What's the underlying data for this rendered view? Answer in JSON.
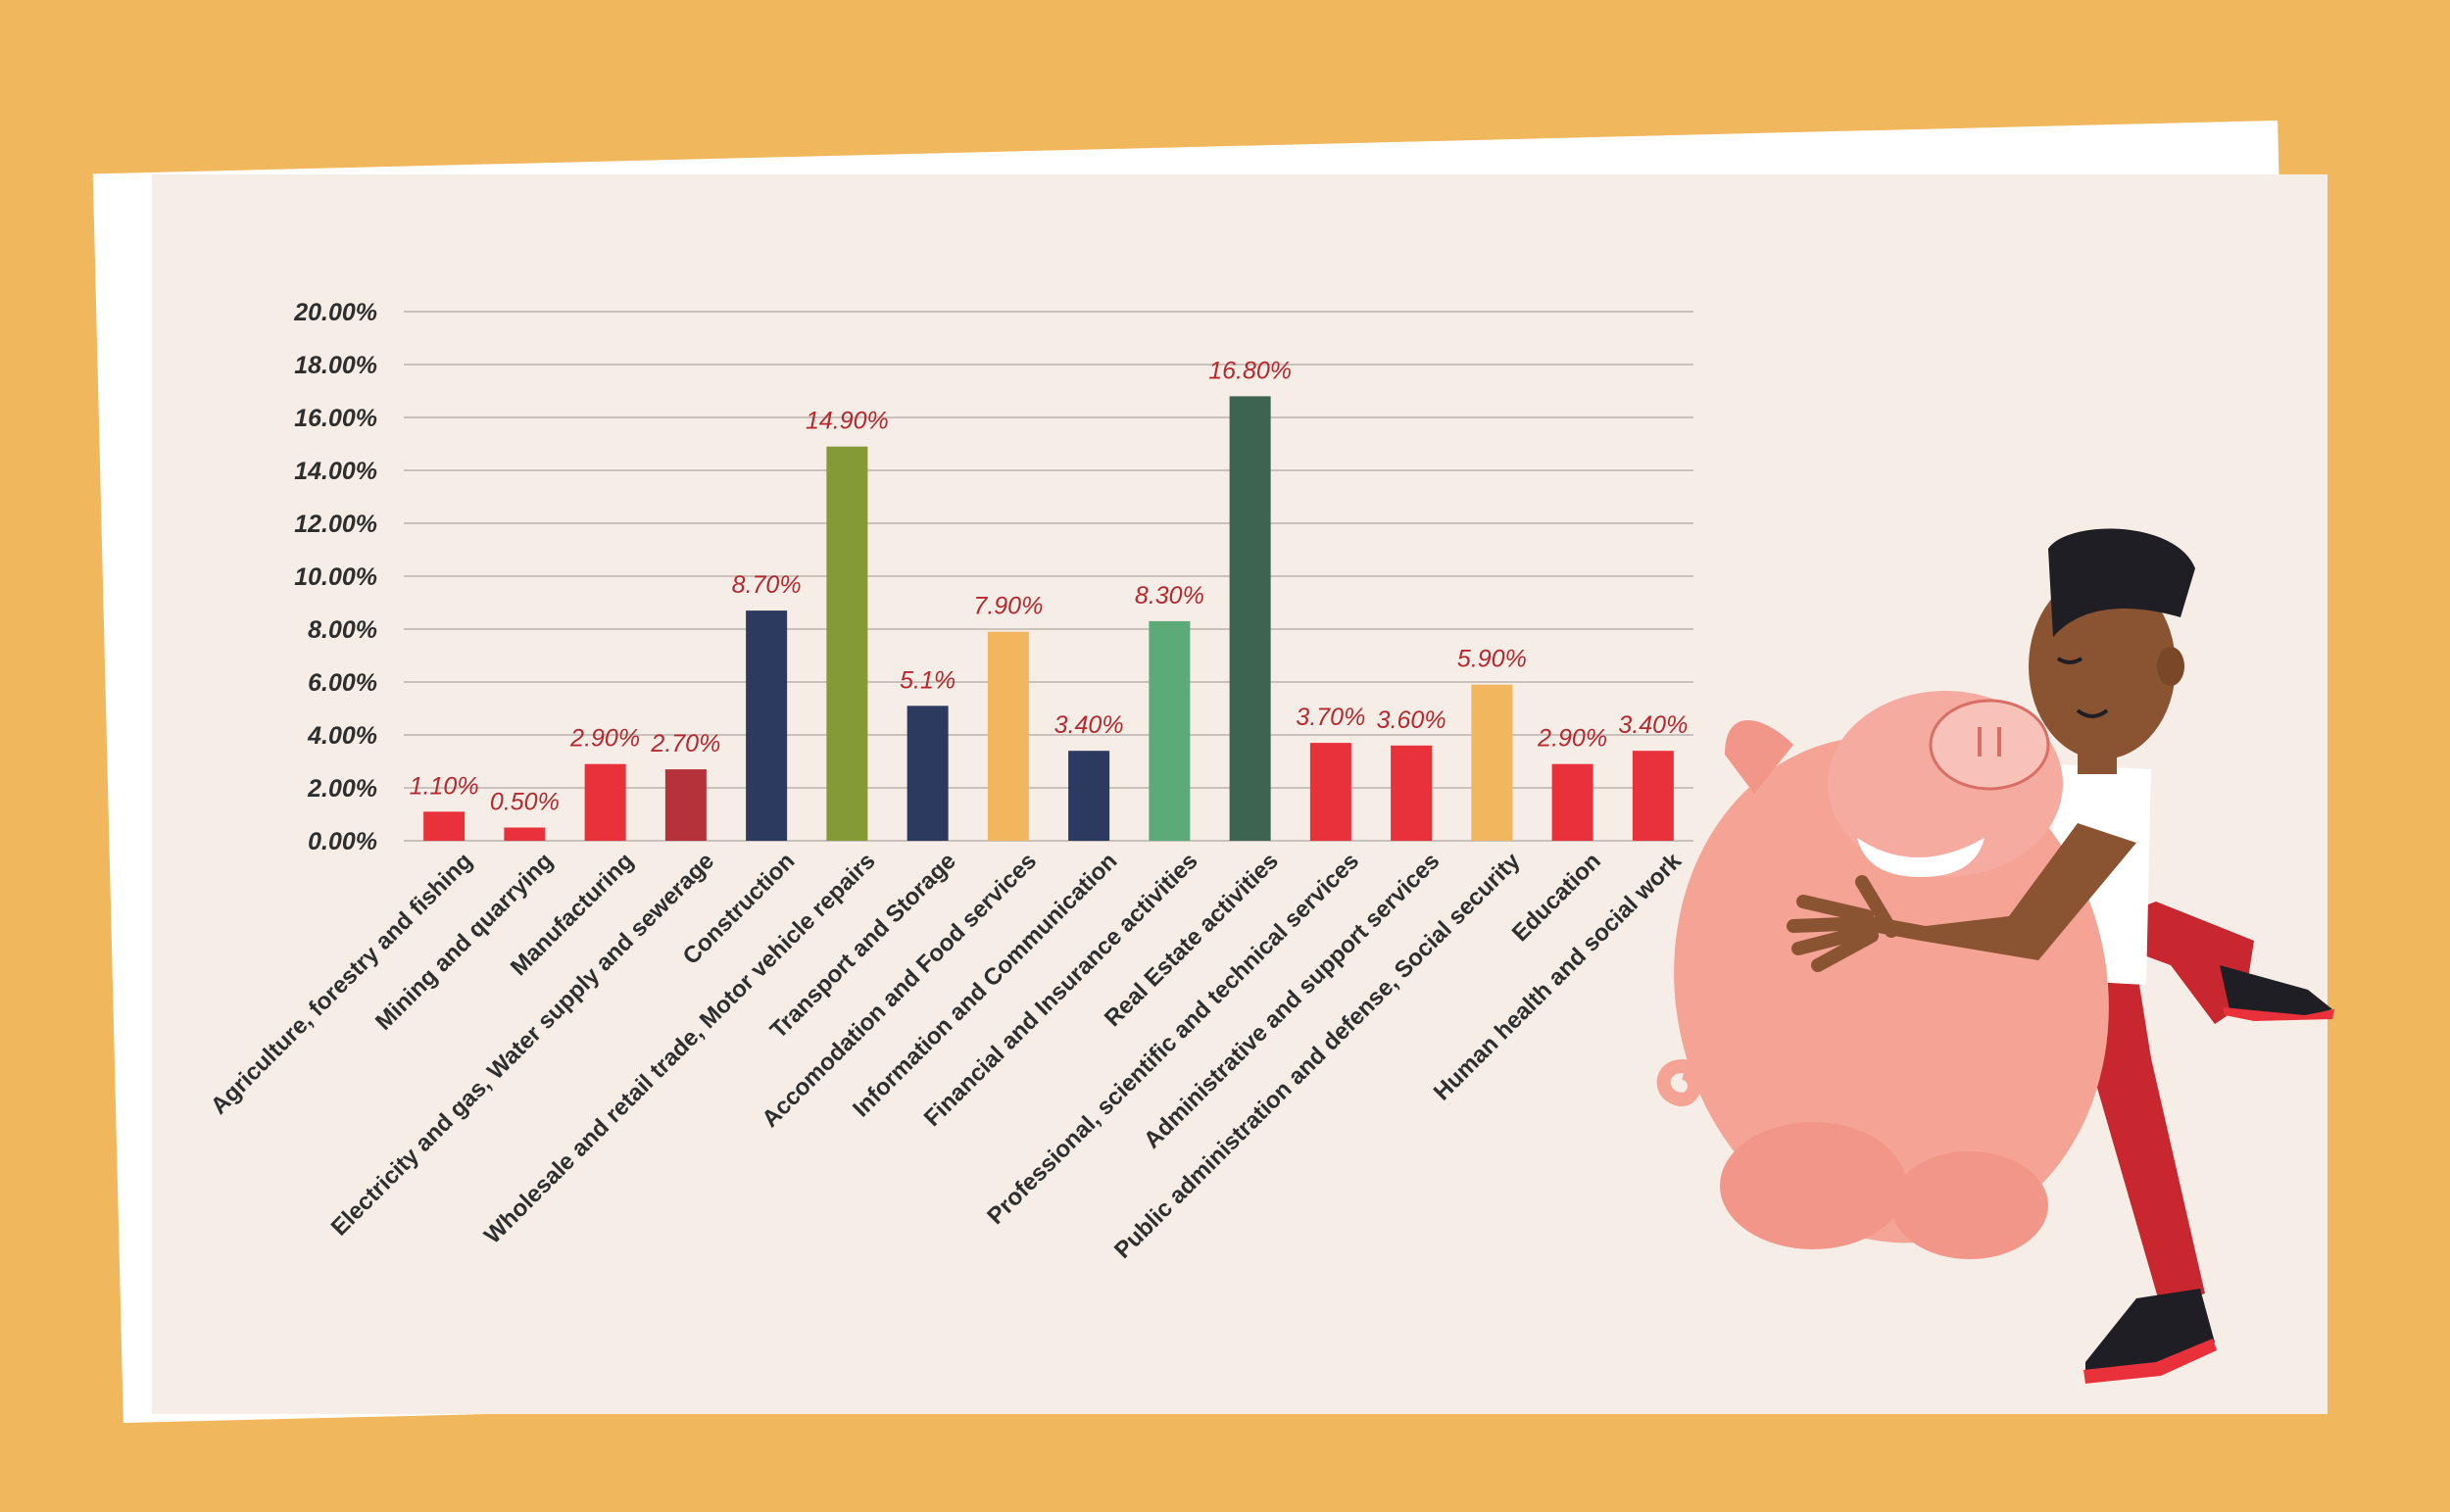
{
  "chart_data": {
    "type": "bar",
    "categories": [
      "Agriculture, forestry and fishing",
      "Mining and quarrying",
      "Manufacturing",
      "Electricity and gas, Water supply and sewerage",
      "Construction",
      "Wholesale and retail trade, Motor vehicle repairs",
      "Transport and Storage",
      "Accomodation and Food services",
      "Information and Communication",
      "Financial and Insurance activities",
      "Real Estate activities",
      "Professional, scientific and technical services",
      "Administrative and support services",
      "Public administration and defense, Social security",
      "Education",
      "Human health and social work"
    ],
    "values": [
      1.1,
      0.5,
      2.9,
      2.7,
      8.7,
      14.9,
      5.1,
      7.9,
      3.4,
      8.3,
      16.8,
      3.7,
      3.6,
      5.9,
      2.9,
      3.4
    ],
    "value_labels": [
      "1.10%",
      "0.50%",
      "2.90%",
      "2.70%",
      "8.70%",
      "14.90%",
      "5.1%",
      "7.90%",
      "3.40%",
      "8.30%",
      "16.80%",
      "3.70%",
      "3.60%",
      "5.90%",
      "2.90%",
      "3.40%"
    ],
    "colors": [
      "#E8313A",
      "#E8313A",
      "#E8313A",
      "#B5323B",
      "#2B3A5E",
      "#849A37",
      "#2B3A5E",
      "#F2B75E",
      "#2B3A5E",
      "#5BAA78",
      "#3D6450",
      "#E8313A",
      "#E8313A",
      "#F2B75E",
      "#E8313A",
      "#E8313A"
    ],
    "ylim": [
      0,
      20
    ],
    "yticks": [
      "0.00%",
      "2.00%",
      "4.00%",
      "6.00%",
      "8.00%",
      "10.00%",
      "12.00%",
      "14.00%",
      "16.00%",
      "18.00%",
      "20.00%"
    ],
    "grid": true,
    "title": "",
    "xlabel": "",
    "ylabel": "",
    "value_label_color": "#B7282E"
  },
  "illustration": {
    "name": "man-hugging-piggy-bank",
    "colors": {
      "background": "#F1B75D",
      "paper": "#F5EDE6",
      "pig": "#F4A394",
      "skin": "#8A5433",
      "hair": "#1E1E24",
      "pants": "#C8272F"
    }
  }
}
